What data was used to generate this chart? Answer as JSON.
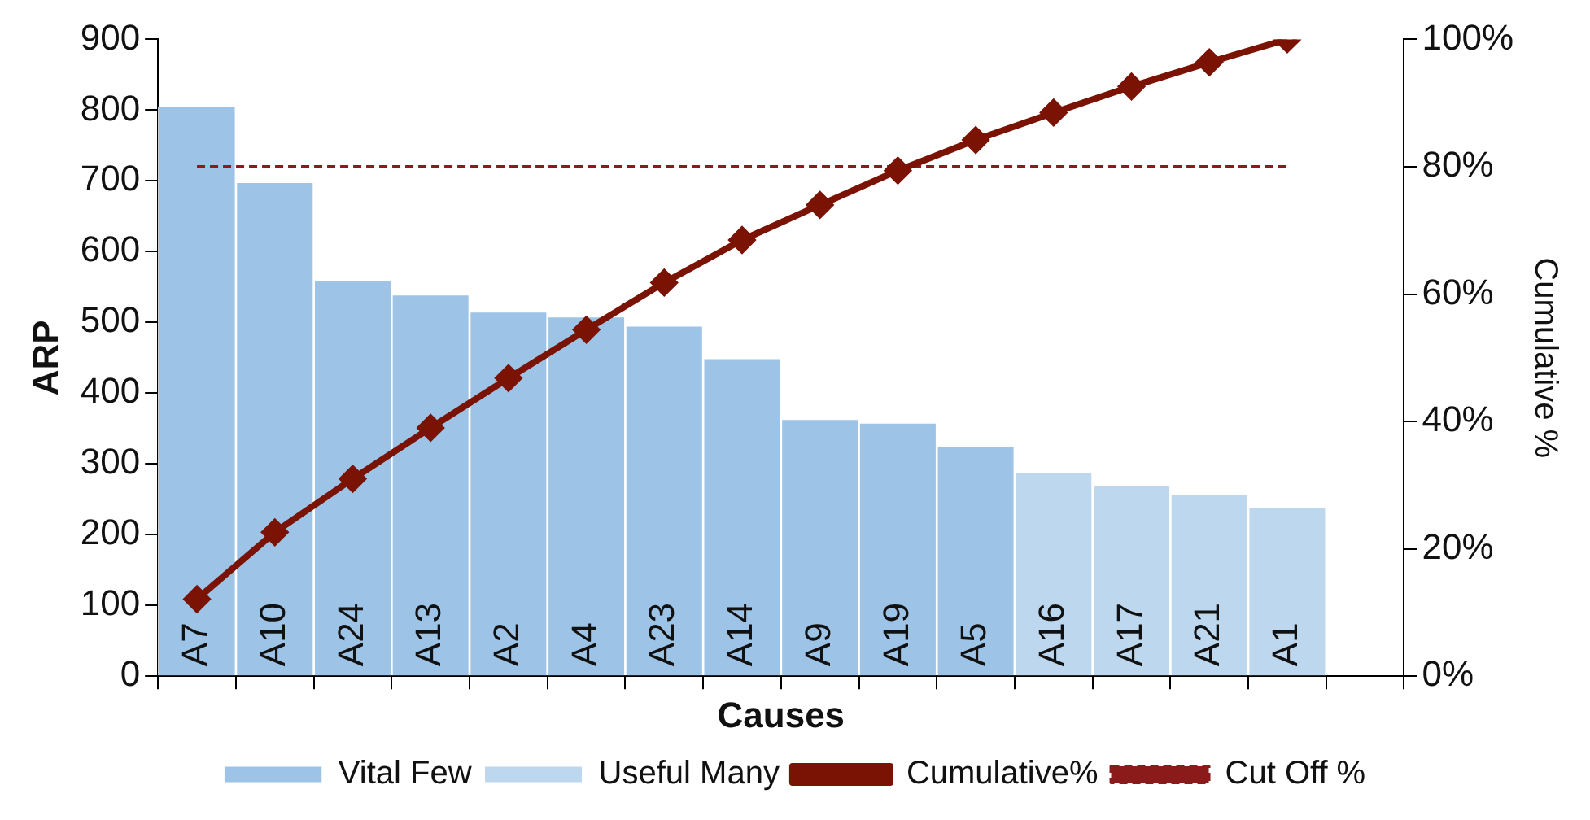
{
  "chart_data": {
    "type": "bar",
    "xlabel": "Causes",
    "ylabel": "ARP",
    "y2label": "Cumulative %",
    "categories": [
      "A7",
      "A10",
      "A24",
      "A13",
      "A2",
      "A4",
      "A23",
      "A14",
      "A9",
      "A19",
      "A5",
      "A16",
      "A17",
      "A21",
      "A1",
      null
    ],
    "series": [
      {
        "name": "Vital Few",
        "color": "#9dc3e6",
        "values": [
          805,
          697,
          558,
          538,
          514,
          507,
          494,
          448,
          362,
          357,
          324,
          null,
          null,
          null,
          null,
          null
        ]
      },
      {
        "name": "Useful Many",
        "color": "#bdd7ee",
        "values": [
          null,
          null,
          null,
          null,
          null,
          null,
          null,
          null,
          null,
          null,
          null,
          287,
          269,
          256,
          238,
          null
        ]
      },
      {
        "name": "Cumulative%",
        "type": "line",
        "axis": "y2",
        "color": "#7b1305",
        "marker": "diamond",
        "line_style": "solid",
        "values": [
          12.1,
          22.6,
          31.0,
          39.0,
          46.8,
          54.4,
          61.8,
          68.5,
          74.0,
          79.4,
          84.2,
          88.5,
          92.6,
          96.4,
          100,
          null
        ]
      },
      {
        "name": "Cut Off %",
        "type": "line",
        "axis": "y2",
        "color": "#8b1a1a",
        "marker": "none",
        "line_style": "dashed",
        "values": [
          80,
          80,
          80,
          80,
          80,
          80,
          80,
          80,
          80,
          80,
          80,
          80,
          80,
          80,
          80,
          null
        ]
      }
    ],
    "ylim": [
      0,
      900
    ],
    "yticks": [
      0,
      100,
      200,
      300,
      400,
      500,
      600,
      700,
      800,
      900
    ],
    "y2lim": [
      0,
      100
    ],
    "y2ticks": [
      {
        "value": 0,
        "label": "0%"
      },
      {
        "value": 20,
        "label": "20%"
      },
      {
        "value": 40,
        "label": "40%"
      },
      {
        "value": 60,
        "label": "60%"
      },
      {
        "value": 80,
        "label": "80%"
      },
      {
        "value": 100,
        "label": "100%"
      }
    ],
    "legend": "bottom"
  }
}
